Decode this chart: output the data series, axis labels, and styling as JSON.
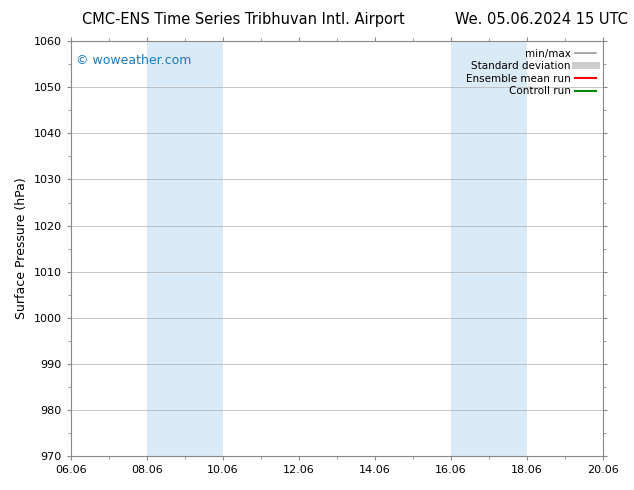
{
  "title_left": "CMC-ENS Time Series Tribhuvan Intl. Airport",
  "title_right": "We. 05.06.2024 15 UTC",
  "ylabel": "Surface Pressure (hPa)",
  "ylim": [
    970,
    1060
  ],
  "yticks": [
    970,
    980,
    990,
    1000,
    1010,
    1020,
    1030,
    1040,
    1050,
    1060
  ],
  "xtick_labels": [
    "06.06",
    "08.06",
    "10.06",
    "12.06",
    "14.06",
    "16.06",
    "18.06",
    "20.06"
  ],
  "xtick_positions": [
    0,
    2,
    4,
    6,
    8,
    10,
    12,
    14
  ],
  "xlim": [
    0,
    14
  ],
  "shaded_bands": [
    {
      "x_start": 2,
      "x_end": 3
    },
    {
      "x_start": 3,
      "x_end": 4
    },
    {
      "x_start": 10,
      "x_end": 11
    },
    {
      "x_start": 11,
      "x_end": 12
    }
  ],
  "shaded_color": "#daeaf6",
  "bg_color": "#ffffff",
  "grid_color": "#b0b0b0",
  "watermark_text": "© woweather.com",
  "watermark_color": "#1a7abf",
  "legend_items": [
    {
      "label": "min/max",
      "color": "#999999",
      "lw": 1.2,
      "ls": "-"
    },
    {
      "label": "Standard deviation",
      "color": "#cccccc",
      "lw": 5,
      "ls": "-"
    },
    {
      "label": "Ensemble mean run",
      "color": "#ff0000",
      "lw": 1.5,
      "ls": "-"
    },
    {
      "label": "Controll run",
      "color": "#008800",
      "lw": 1.5,
      "ls": "-"
    }
  ],
  "title_fontsize": 10.5,
  "axis_fontsize": 9,
  "tick_fontsize": 8,
  "legend_fontsize": 7.5,
  "watermark_fontsize": 9
}
